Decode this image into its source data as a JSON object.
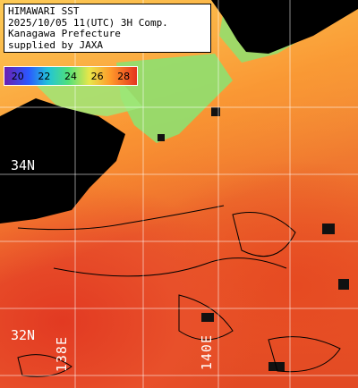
{
  "info": {
    "line1": "HIMAWARI SST",
    "line2": "2025/10/05 11(UTC) 3H Comp.",
    "line3": "Kanagawa Prefecture",
    "line4": "supplied by JAXA"
  },
  "scale": {
    "labels": [
      "20",
      "22",
      "24",
      "26",
      "28"
    ],
    "colors": [
      "#6b1fb0",
      "#2b58ff",
      "#22c4d8",
      "#4fe07a",
      "#e8e64a",
      "#ff9a2a",
      "#e5331f"
    ]
  },
  "grid": {
    "lat_labels": [
      "34N",
      "32N"
    ],
    "lon_labels": [
      "138E",
      "140E"
    ]
  },
  "land_color": "#000000",
  "cloud_color": "#222222"
}
